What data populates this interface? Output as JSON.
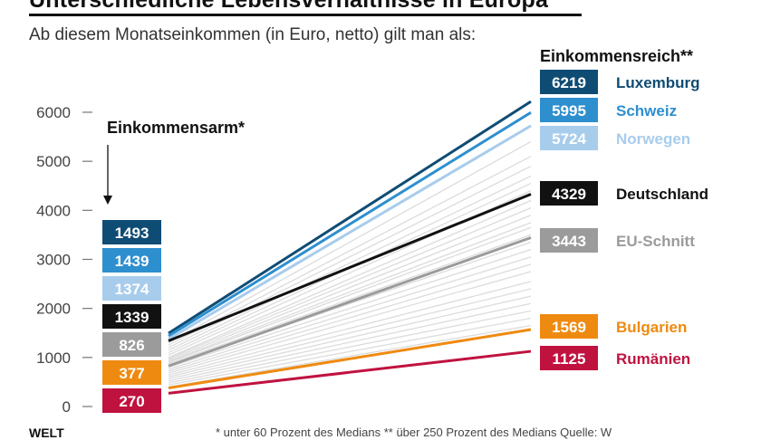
{
  "title": "Unterschiedliche Lebensverhältnisse in Europa",
  "subtitle": "Ab diesem Monatseinkommen (in Euro, netto) gilt man als:",
  "left_heading": "Einkommensarm*",
  "right_heading": "Einkommensreich**",
  "footer": {
    "brand": "WELT",
    "note": "* unter 60 Prozent des Medians  ** über 250 Prozent des Medians  Quelle: W"
  },
  "colors": {
    "luxemburg": "#0f4c74",
    "schweiz": "#2e8fcf",
    "norwegen": "#a8ccec",
    "deutschland": "#111111",
    "eu": "#9b9b9b",
    "bulgarien": "#ef8a10",
    "rumaenien": "#c0123f",
    "background_lines": "#dcdcdc"
  },
  "chart_data": {
    "type": "line",
    "x": [
      "Einkommensarm",
      "Einkommensreich"
    ],
    "ylim": [
      0,
      6219
    ],
    "yticks": [
      0,
      1000,
      2000,
      3000,
      4000,
      5000,
      6000
    ],
    "grid": false,
    "series": [
      {
        "name": "Luxemburg",
        "values": [
          1493,
          6219
        ],
        "color": "#0f4c74",
        "label_color": "#0f4c74"
      },
      {
        "name": "Schweiz",
        "values": [
          1439,
          5995
        ],
        "color": "#2e8fcf",
        "label_color": "#2e8fcf"
      },
      {
        "name": "Norwegen",
        "values": [
          1374,
          5724
        ],
        "color": "#a8ccec",
        "label_color": "#a8ccec"
      },
      {
        "name": "Deutschland",
        "values": [
          1339,
          4329
        ],
        "color": "#111111",
        "label_color": "#111111"
      },
      {
        "name": "EU-Schnitt",
        "values": [
          826,
          3443
        ],
        "color": "#9b9b9b",
        "label_color": "#9b9b9b"
      },
      {
        "name": "Bulgarien",
        "values": [
          377,
          1569
        ],
        "color": "#ef8a10",
        "label_color": "#ef8a10"
      },
      {
        "name": "Rumänien",
        "values": [
          270,
          1125
        ],
        "color": "#c0123f",
        "label_color": "#c0123f"
      }
    ],
    "background_series": [
      [
        1300,
        5400
      ],
      [
        1250,
        5100
      ],
      [
        1200,
        4900
      ],
      [
        1150,
        4700
      ],
      [
        1100,
        4550
      ],
      [
        1050,
        4400
      ],
      [
        1000,
        4200
      ],
      [
        980,
        4050
      ],
      [
        950,
        3900
      ],
      [
        920,
        3750
      ],
      [
        900,
        3650
      ],
      [
        870,
        3500
      ],
      [
        840,
        3350
      ],
      [
        800,
        3200
      ],
      [
        760,
        3050
      ],
      [
        720,
        2900
      ],
      [
        680,
        2750
      ],
      [
        640,
        2550
      ],
      [
        600,
        2400
      ],
      [
        560,
        2250
      ],
      [
        520,
        2100
      ],
      [
        480,
        1950
      ],
      [
        440,
        1800
      ],
      [
        400,
        1650
      ]
    ]
  }
}
